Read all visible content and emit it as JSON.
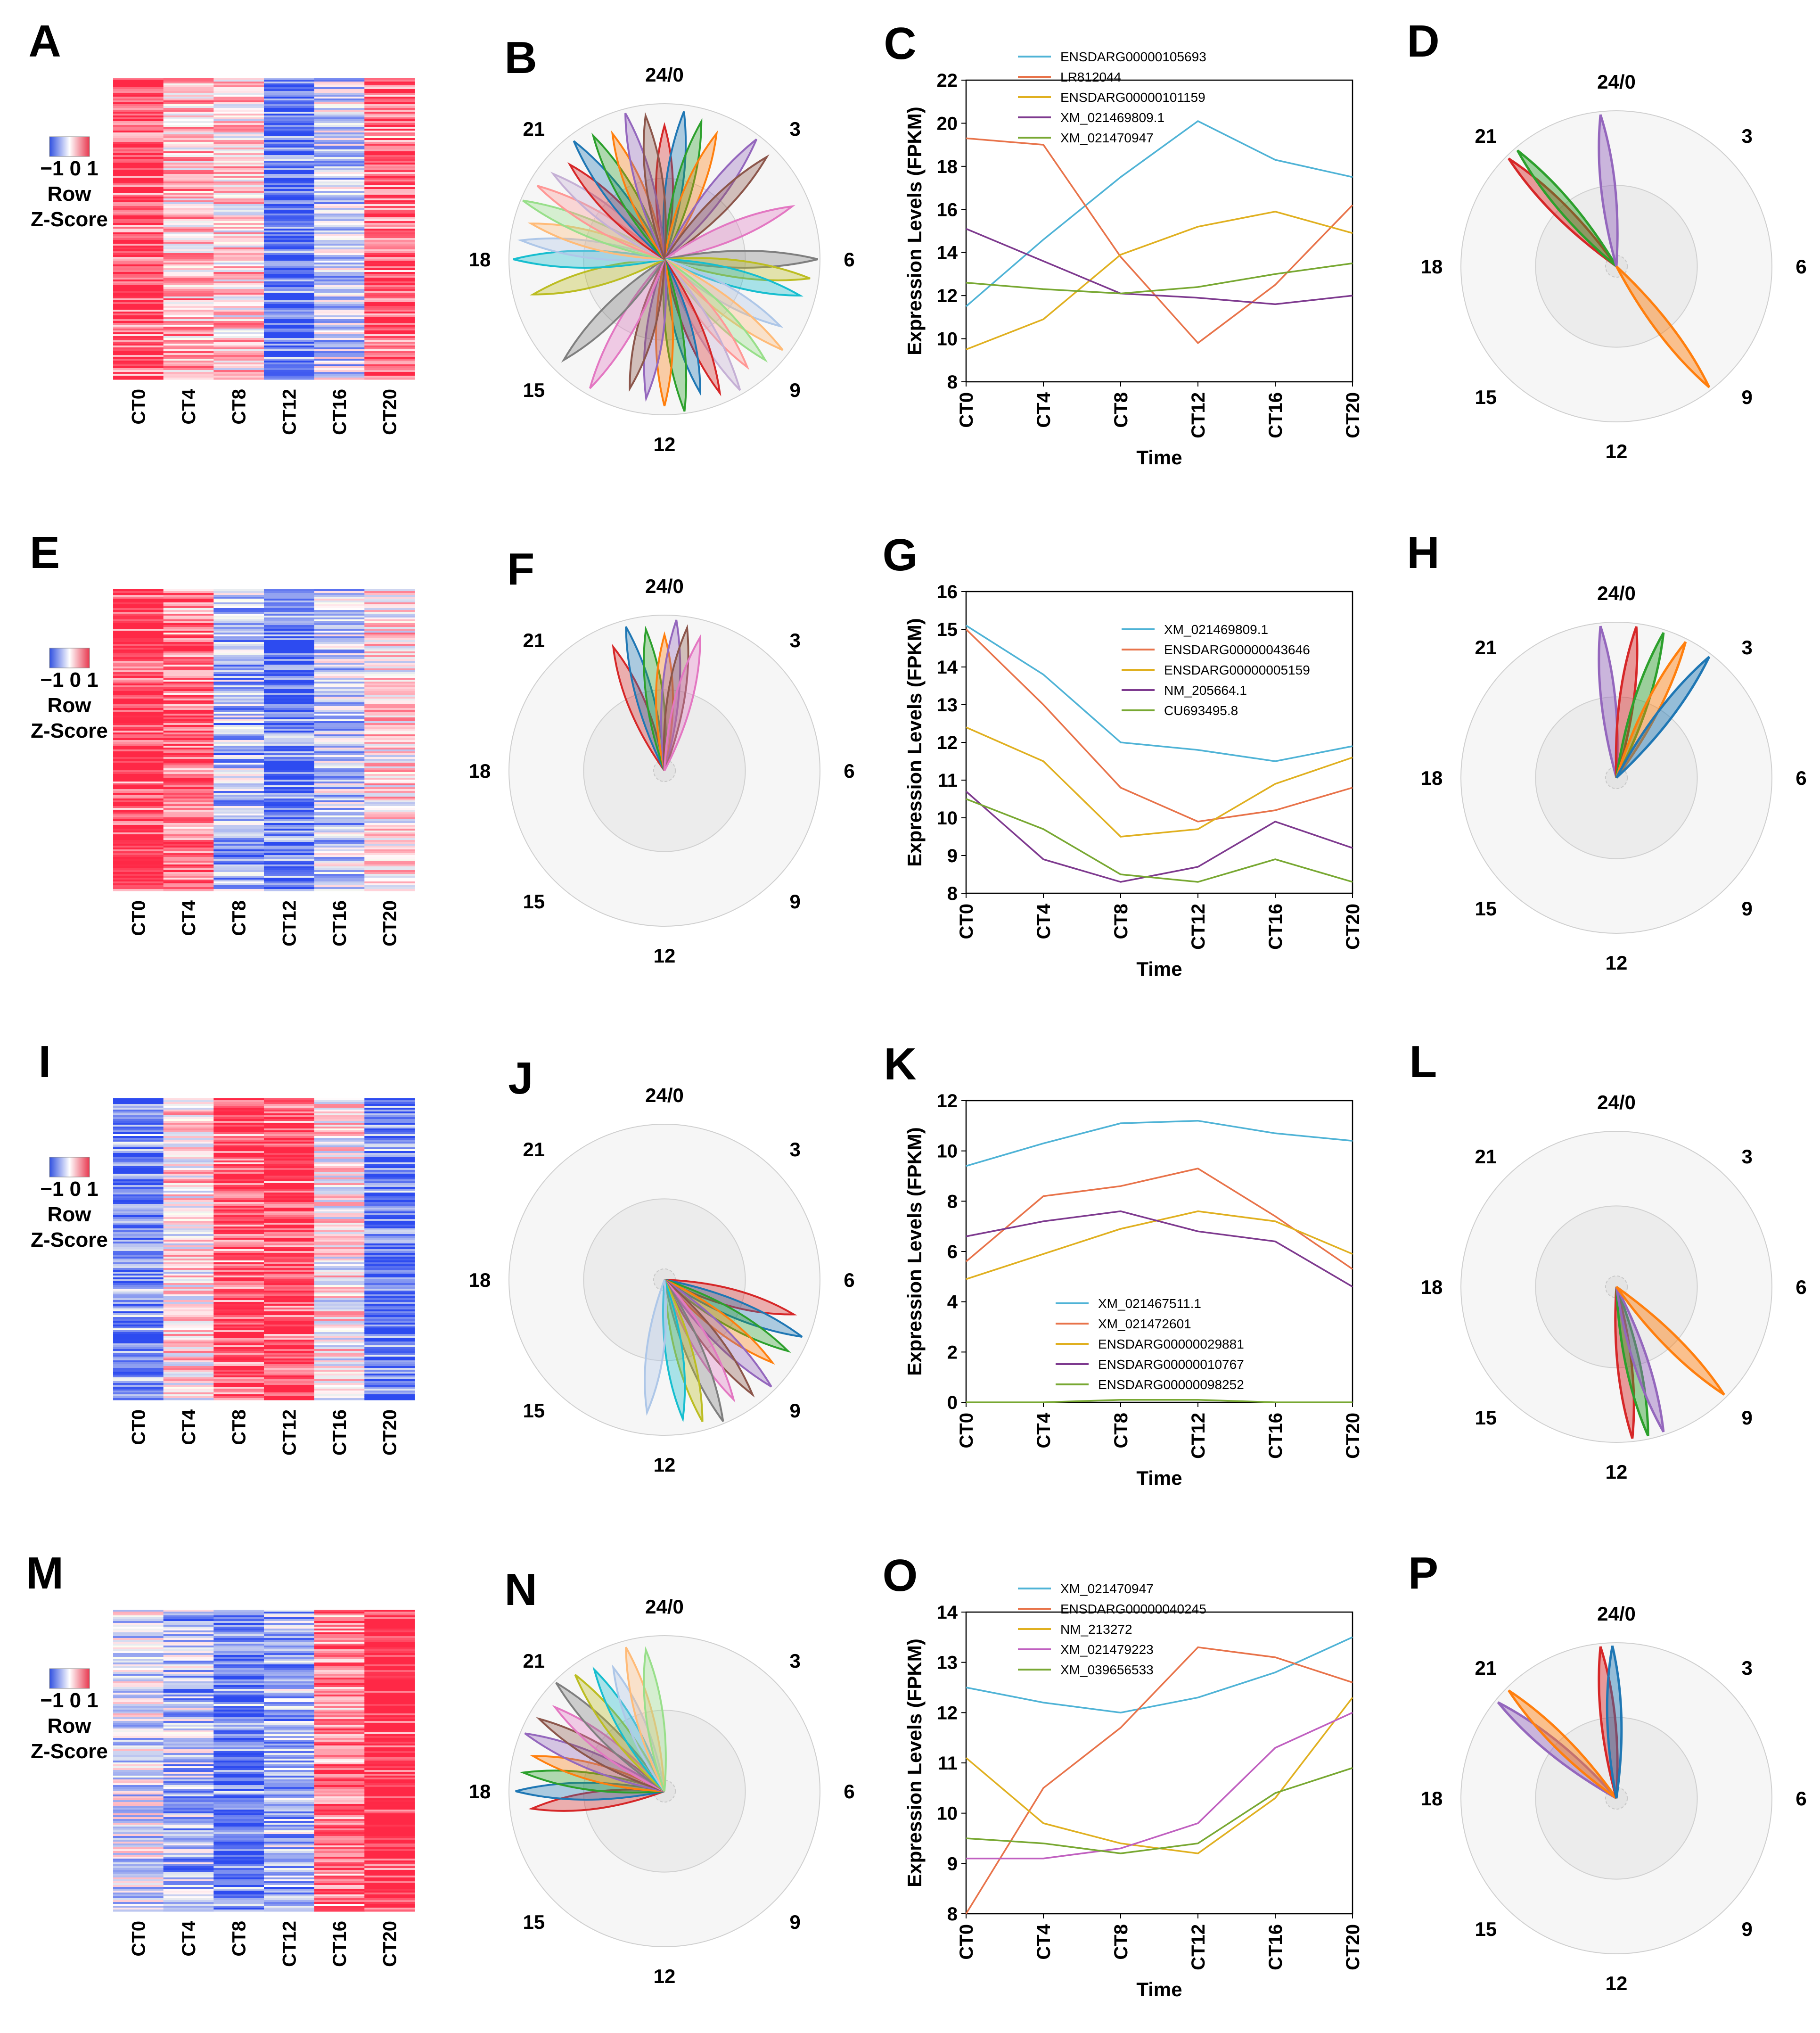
{
  "figure": {
    "times": [
      "CT0",
      "CT4",
      "CT8",
      "CT12",
      "CT16",
      "CT20"
    ],
    "x_title": "Time",
    "y_title": "Expression Levels (FPKM)",
    "clock_labels": [
      "24/0",
      "3",
      "6",
      "9",
      "12",
      "15",
      "18",
      "21"
    ],
    "key_text": {
      "scale": "−1 0 1",
      "line1": "Row",
      "line2": "Z-Score"
    },
    "colors": {
      "blue": "#1f77b4",
      "orange": "#ff7f0e",
      "green": "#2ca02c",
      "red": "#d62728",
      "purple": "#9467bd",
      "mc1": "#4fb3d6",
      "mc2": "#e8734a",
      "mc3": "#e0b020",
      "mc4": "#7e3a8f",
      "mc5": "#78a832",
      "hm_red": "#e8384f",
      "hm_blue": "#3050e0"
    }
  },
  "rows": [
    {
      "heatmap": {
        "letter": "A",
        "pattern": [
          1,
          0.4,
          0.3,
          -1,
          -0.3,
          0.9
        ]
      },
      "rose": {
        "letter": "B",
        "peaks": [
          0,
          0.5,
          1,
          1.5,
          2.5,
          3,
          4.5,
          6,
          6.5,
          7,
          8,
          8.5,
          9,
          9.5,
          10,
          10.5,
          11,
          11.5,
          12,
          12.5,
          13,
          14,
          15,
          17,
          18,
          18.5,
          19,
          19.5,
          20,
          20.5,
          21,
          21.5,
          22,
          22.5,
          23,
          23.5
        ]
      },
      "rose_detail": {
        "letter": "D",
        "peaks": [
          {
            "h": 21,
            "c": "red"
          },
          {
            "h": 21.3,
            "c": "green"
          },
          {
            "h": 23.6,
            "c": "purple"
          },
          {
            "h": 9.5,
            "c": "orange"
          }
        ]
      }
    },
    {
      "heatmap": {
        "letter": "E",
        "pattern": [
          1.2,
          0.8,
          -0.5,
          -1,
          -0.4,
          0.2
        ]
      },
      "rose": {
        "letter": "F",
        "peaks": [
          22.5,
          23,
          23.5,
          0,
          0.3,
          0.6,
          1
        ]
      },
      "rose_detail": {
        "letter": "H",
        "peaks": [
          {
            "h": 23.6,
            "c": "purple"
          },
          {
            "h": 0.5,
            "c": "red"
          },
          {
            "h": 1.2,
            "c": "green"
          },
          {
            "h": 1.8,
            "c": "orange"
          },
          {
            "h": 2.5,
            "c": "blue"
          }
        ]
      }
    },
    {
      "heatmap": {
        "letter": "I",
        "pattern": [
          -0.8,
          0.2,
          1,
          1.1,
          0.1,
          -1
        ]
      },
      "rose": {
        "letter": "J",
        "peaks": [
          7,
          7.5,
          8,
          8.5,
          9,
          9.5,
          10,
          10.5,
          11,
          11.5,
          12.5
        ]
      },
      "rose_detail": {
        "letter": "L",
        "peaks": [
          {
            "h": 11.6,
            "c": "red"
          },
          {
            "h": 11.2,
            "c": "green"
          },
          {
            "h": 10.8,
            "c": "purple"
          },
          {
            "h": 9,
            "c": "orange"
          }
        ]
      }
    },
    {
      "heatmap": {
        "letter": "M",
        "pattern": [
          -0.2,
          -0.5,
          -0.9,
          -0.5,
          0.8,
          1.3
        ]
      },
      "rose": {
        "letter": "N",
        "peaks": [
          17.5,
          18,
          18.5,
          19,
          19.5,
          20,
          20.5,
          21,
          21.5,
          22,
          22.5,
          23,
          23.5
        ]
      },
      "rose_detail": {
        "letter": "P",
        "peaks": [
          {
            "h": 20.6,
            "c": "purple"
          },
          {
            "h": 21,
            "c": "orange"
          },
          {
            "h": 23.6,
            "c": "red"
          },
          {
            "h": 23.9,
            "c": "blue"
          }
        ]
      }
    }
  ],
  "chart_data": [
    {
      "letter": "C",
      "type": "line",
      "title": "",
      "xlabel": "Time",
      "ylabel": "Expression Levels (FPKM)",
      "categories": [
        "CT0",
        "CT4",
        "CT8",
        "CT12",
        "CT16",
        "CT20"
      ],
      "ylim": [
        8,
        22
      ],
      "yticks": [
        8,
        10,
        12,
        14,
        16,
        18,
        20,
        22
      ],
      "legend": "top",
      "series": [
        {
          "name": "ENSDARG00000105693",
          "color": "#4fb3d6",
          "values": [
            11.5,
            14.6,
            17.5,
            20.1,
            18.3,
            17.5
          ]
        },
        {
          "name": "LR812044",
          "color": "#e8734a",
          "values": [
            19.3,
            19.0,
            13.8,
            9.8,
            12.5,
            16.2
          ]
        },
        {
          "name": "ENSDARG00000101159",
          "color": "#e0b020",
          "values": [
            9.5,
            10.9,
            13.9,
            15.2,
            15.9,
            14.9
          ]
        },
        {
          "name": "XM_021469809.1",
          "color": "#7e3a8f",
          "values": [
            15.1,
            13.6,
            12.1,
            11.9,
            11.6,
            12.0
          ]
        },
        {
          "name": "XM_021470947",
          "color": "#78a832",
          "values": [
            12.6,
            12.3,
            12.1,
            12.4,
            13.0,
            13.5
          ]
        }
      ]
    },
    {
      "letter": "G",
      "type": "line",
      "title": "",
      "xlabel": "Time",
      "ylabel": "Expression Levels (FPKM)",
      "categories": [
        "CT0",
        "CT4",
        "CT8",
        "CT12",
        "CT16",
        "CT20"
      ],
      "ylim": [
        8,
        16
      ],
      "yticks": [
        8,
        9,
        10,
        11,
        12,
        13,
        14,
        15,
        16
      ],
      "legend": "top-right",
      "series": [
        {
          "name": "XM_021469809.1",
          "color": "#4fb3d6",
          "values": [
            15.1,
            13.8,
            12.0,
            11.8,
            11.5,
            11.9
          ]
        },
        {
          "name": "ENSDARG00000043646",
          "color": "#e8734a",
          "values": [
            15.0,
            13.0,
            10.8,
            9.9,
            10.2,
            10.8
          ]
        },
        {
          "name": "ENSDARG00000005159",
          "color": "#e0b020",
          "values": [
            12.4,
            11.5,
            9.5,
            9.7,
            10.9,
            11.6
          ]
        },
        {
          "name": "NM_205664.1",
          "color": "#7e3a8f",
          "values": [
            10.7,
            8.9,
            8.3,
            8.7,
            9.9,
            9.2
          ]
        },
        {
          "name": "CU693495.8",
          "color": "#78a832",
          "values": [
            10.5,
            9.7,
            8.5,
            8.3,
            8.9,
            8.3
          ]
        }
      ]
    },
    {
      "letter": "K",
      "type": "line",
      "title": "",
      "xlabel": "Time",
      "ylabel": "Expression Levels (FPKM)",
      "categories": [
        "CT0",
        "CT4",
        "CT8",
        "CT12",
        "CT16",
        "CT20"
      ],
      "ylim": [
        0,
        12
      ],
      "yticks": [
        0,
        2,
        4,
        6,
        8,
        10,
        12
      ],
      "legend": "bottom-center",
      "series": [
        {
          "name": "XM_021467511.1",
          "color": "#4fb3d6",
          "values": [
            9.4,
            10.3,
            11.1,
            11.2,
            10.7,
            10.4
          ]
        },
        {
          "name": "XM_021472601",
          "color": "#e8734a",
          "values": [
            5.6,
            8.2,
            8.6,
            9.3,
            7.4,
            5.3
          ]
        },
        {
          "name": "ENSDARG00000029881",
          "color": "#e0b020",
          "values": [
            4.9,
            5.9,
            6.9,
            7.6,
            7.2,
            5.9
          ]
        },
        {
          "name": "ENSDARG00000010767",
          "color": "#7e3a8f",
          "values": [
            6.6,
            7.2,
            7.6,
            6.8,
            6.4,
            4.6
          ]
        },
        {
          "name": "ENSDARG00000098252",
          "color": "#78a832",
          "values": [
            0.0,
            0.0,
            0.1,
            0.1,
            0.0,
            0.0
          ]
        }
      ]
    },
    {
      "letter": "O",
      "type": "line",
      "title": "",
      "xlabel": "Time",
      "ylabel": "Expression Levels (FPKM)",
      "categories": [
        "CT0",
        "CT4",
        "CT8",
        "CT12",
        "CT16",
        "CT20"
      ],
      "ylim": [
        8,
        14
      ],
      "yticks": [
        8,
        9,
        10,
        11,
        12,
        13,
        14
      ],
      "legend": "top",
      "series": [
        {
          "name": "XM_021470947",
          "color": "#4fb3d6",
          "values": [
            12.5,
            12.2,
            12.0,
            12.3,
            12.8,
            13.5
          ]
        },
        {
          "name": "ENSDARG00000040245",
          "color": "#e8734a",
          "values": [
            8.0,
            10.5,
            11.7,
            13.3,
            13.1,
            12.6
          ]
        },
        {
          "name": "NM_213272",
          "color": "#e0b020",
          "values": [
            11.1,
            9.8,
            9.4,
            9.2,
            10.3,
            12.3
          ]
        },
        {
          "name": "XM_021479223",
          "color": "#c060c0",
          "values": [
            9.1,
            9.1,
            9.3,
            9.8,
            11.3,
            12.0
          ]
        },
        {
          "name": "XM_039656533",
          "color": "#78a832",
          "values": [
            9.5,
            9.4,
            9.2,
            9.4,
            10.4,
            10.9
          ]
        }
      ]
    }
  ]
}
